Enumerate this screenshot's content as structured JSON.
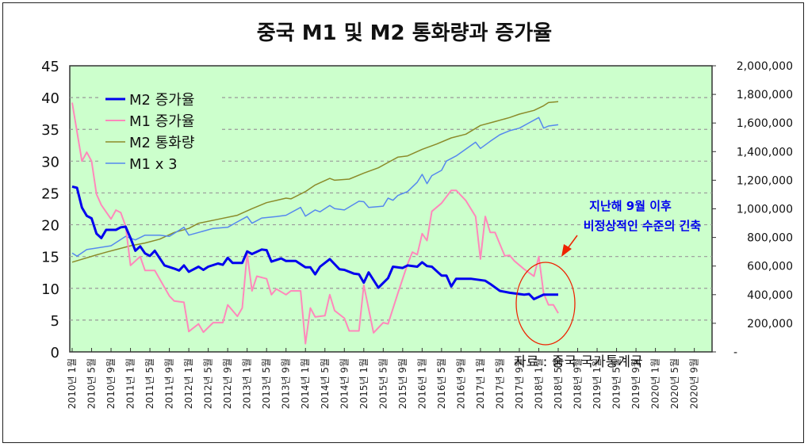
{
  "chart_data": {
    "type": "line",
    "title": "중국 M1 및 M2 통화량과 증가율",
    "xlabel": "",
    "ylabel_left": "",
    "ylabel_right": "",
    "ylim_left": [
      0,
      45
    ],
    "ylim_right": [
      0,
      2000000
    ],
    "left_ticks": [
      "0",
      "5",
      "10",
      "15",
      "20",
      "25",
      "30",
      "35",
      "40",
      "45"
    ],
    "right_ticks": [
      "-",
      "200,000",
      "400,000",
      "600,000",
      "800,000",
      "1,000,000",
      "1,200,000",
      "1,400,000",
      "1,600,000",
      "1,800,000",
      "2,000,000"
    ],
    "x_start": "2010-01",
    "x_months": 129,
    "x_tick_labels": [
      "2010년 1월",
      "2010년 5월",
      "2010년 9월",
      "2011년 1월",
      "2011년 5월",
      "2011년 9월",
      "2012년 1월",
      "2012년 5월",
      "2012년 9월",
      "2013년 1월",
      "2013년 5월",
      "2013년 9월",
      "2014년 1월",
      "2014년 5월",
      "2014년 9월",
      "2015년 1월",
      "2015년 5월",
      "2015년 9월",
      "2016년 1월",
      "2016년 5월",
      "2016년 9월",
      "2017년 1월",
      "2017년 5월",
      "2017년 9월",
      "2018년 1월",
      "2018년 5월",
      "2018년 9월",
      "2019년 1월",
      "2019년 5월",
      "2019년 9월",
      "2020년 1월",
      "2020년 5월",
      "2020년 9월"
    ],
    "grid": true,
    "legend_placement": "top-left",
    "series": [
      {
        "name": "M2 증가율",
        "axis": "left",
        "color": "#0000ee",
        "width": 3,
        "points": [
          [
            0,
            26.0
          ],
          [
            1,
            25.8
          ],
          [
            2,
            22.7
          ],
          [
            3,
            21.4
          ],
          [
            4,
            21.0
          ],
          [
            5,
            18.6
          ],
          [
            6,
            17.9
          ],
          [
            7,
            19.2
          ],
          [
            9,
            19.2
          ],
          [
            10,
            19.6
          ],
          [
            11,
            19.7
          ],
          [
            12,
            17.9
          ],
          [
            13,
            15.9
          ],
          [
            14,
            16.6
          ],
          [
            15,
            15.5
          ],
          [
            16,
            15.1
          ],
          [
            17,
            15.9
          ],
          [
            19,
            13.6
          ],
          [
            21,
            13.1
          ],
          [
            22,
            12.8
          ],
          [
            23,
            13.6
          ],
          [
            24,
            12.6
          ],
          [
            26,
            13.4
          ],
          [
            27,
            12.9
          ],
          [
            28,
            13.4
          ],
          [
            30,
            13.9
          ],
          [
            31,
            13.7
          ],
          [
            32,
            14.8
          ],
          [
            33,
            14.0
          ],
          [
            35,
            14.0
          ],
          [
            36,
            15.8
          ],
          [
            37,
            15.4
          ],
          [
            39,
            16.1
          ],
          [
            40,
            16.0
          ],
          [
            41,
            14.2
          ],
          [
            43,
            14.7
          ],
          [
            44,
            14.3
          ],
          [
            46,
            14.3
          ],
          [
            48,
            13.3
          ],
          [
            49,
            13.3
          ],
          [
            50,
            12.2
          ],
          [
            51,
            13.4
          ],
          [
            53,
            14.6
          ],
          [
            55,
            13.0
          ],
          [
            56,
            12.9
          ],
          [
            58,
            12.3
          ],
          [
            59,
            12.2
          ],
          [
            60,
            10.9
          ],
          [
            61,
            12.5
          ],
          [
            63,
            10.1
          ],
          [
            65,
            11.6
          ],
          [
            66,
            13.4
          ],
          [
            68,
            13.2
          ],
          [
            69,
            13.6
          ],
          [
            71,
            13.4
          ],
          [
            72,
            14.1
          ],
          [
            73,
            13.5
          ],
          [
            74,
            13.4
          ],
          [
            76,
            12.0
          ],
          [
            77,
            12.0
          ],
          [
            78,
            10.3
          ],
          [
            79,
            11.5
          ],
          [
            82,
            11.5
          ],
          [
            85,
            11.2
          ],
          [
            86,
            10.7
          ],
          [
            88,
            9.6
          ],
          [
            90,
            9.3
          ],
          [
            92,
            9.1
          ],
          [
            93,
            9.0
          ],
          [
            94,
            9.1
          ],
          [
            95,
            8.3
          ],
          [
            97,
            9.0
          ],
          [
            100,
            9.0
          ]
        ]
      },
      {
        "name": "M1 증가율",
        "axis": "left",
        "color": "#ff88bb",
        "width": 2,
        "points": [
          [
            0,
            39.2
          ],
          [
            2,
            30.0
          ],
          [
            3,
            31.4
          ],
          [
            4,
            30.0
          ],
          [
            5,
            24.8
          ],
          [
            6,
            23.1
          ],
          [
            8,
            20.9
          ],
          [
            9,
            22.3
          ],
          [
            10,
            21.9
          ],
          [
            11,
            19.8
          ],
          [
            12,
            13.6
          ],
          [
            14,
            15.0
          ],
          [
            15,
            12.8
          ],
          [
            17,
            12.8
          ],
          [
            20,
            8.8
          ],
          [
            21,
            8.0
          ],
          [
            23,
            7.8
          ],
          [
            24,
            3.2
          ],
          [
            26,
            4.4
          ],
          [
            27,
            3.1
          ],
          [
            29,
            4.6
          ],
          [
            31,
            4.6
          ],
          [
            32,
            7.4
          ],
          [
            34,
            5.6
          ],
          [
            35,
            6.9
          ],
          [
            36,
            15.5
          ],
          [
            37,
            9.6
          ],
          [
            38,
            11.9
          ],
          [
            40,
            11.5
          ],
          [
            41,
            9.0
          ],
          [
            42,
            9.9
          ],
          [
            44,
            9.0
          ],
          [
            45,
            9.6
          ],
          [
            47,
            9.6
          ],
          [
            48,
            1.3
          ],
          [
            49,
            6.9
          ],
          [
            50,
            5.5
          ],
          [
            52,
            5.7
          ],
          [
            53,
            9.0
          ],
          [
            54,
            6.5
          ],
          [
            56,
            5.3
          ],
          [
            57,
            3.3
          ],
          [
            59,
            3.3
          ],
          [
            60,
            10.5
          ],
          [
            62,
            3.0
          ],
          [
            63,
            3.8
          ],
          [
            64,
            4.6
          ],
          [
            65,
            4.4
          ],
          [
            67,
            9.2
          ],
          [
            69,
            13.8
          ],
          [
            70,
            15.7
          ],
          [
            71,
            15.3
          ],
          [
            72,
            18.6
          ],
          [
            73,
            17.5
          ],
          [
            74,
            22.1
          ],
          [
            76,
            23.4
          ],
          [
            78,
            25.4
          ],
          [
            79,
            25.4
          ],
          [
            81,
            23.8
          ],
          [
            83,
            21.3
          ],
          [
            84,
            14.6
          ],
          [
            85,
            21.3
          ],
          [
            86,
            18.8
          ],
          [
            87,
            18.8
          ],
          [
            89,
            15.1
          ],
          [
            90,
            15.2
          ],
          [
            91,
            14.3
          ],
          [
            93,
            13.0
          ],
          [
            95,
            11.9
          ],
          [
            96,
            15.0
          ],
          [
            97,
            9.2
          ],
          [
            98,
            7.4
          ],
          [
            99,
            7.4
          ],
          [
            100,
            6.1
          ]
        ]
      },
      {
        "name": "M2 통화량",
        "axis": "right",
        "color": "#8b8b2a",
        "width": 1.5,
        "points": [
          [
            0,
            627000
          ],
          [
            5,
            678000
          ],
          [
            7,
            697000
          ],
          [
            12,
            742000
          ],
          [
            15,
            761000
          ],
          [
            18,
            788000
          ],
          [
            21,
            835000
          ],
          [
            24,
            863000
          ],
          [
            26,
            899000
          ],
          [
            30,
            927000
          ],
          [
            34,
            955000
          ],
          [
            37,
            1001000
          ],
          [
            40,
            1043000
          ],
          [
            44,
            1075000
          ],
          [
            45,
            1070000
          ],
          [
            48,
            1121000
          ],
          [
            50,
            1167000
          ],
          [
            53,
            1213000
          ],
          [
            54,
            1200000
          ],
          [
            57,
            1208000
          ],
          [
            60,
            1250000
          ],
          [
            63,
            1287000
          ],
          [
            65,
            1324000
          ],
          [
            67,
            1361000
          ],
          [
            69,
            1370000
          ],
          [
            72,
            1416000
          ],
          [
            75,
            1453000
          ],
          [
            78,
            1496000
          ],
          [
            81,
            1522000
          ],
          [
            84,
            1583000
          ],
          [
            87,
            1610000
          ],
          [
            90,
            1638000
          ],
          [
            92,
            1662000
          ],
          [
            95,
            1688000
          ],
          [
            97,
            1721000
          ],
          [
            98,
            1743000
          ],
          [
            100,
            1749000
          ]
        ]
      },
      {
        "name": "M1 x 3",
        "axis": "right",
        "color": "#5588ee",
        "width": 1.5,
        "points": [
          [
            0,
            691000
          ],
          [
            1,
            669000
          ],
          [
            3,
            715000
          ],
          [
            8,
            742000
          ],
          [
            11,
            807000
          ],
          [
            13,
            783000
          ],
          [
            15,
            816000
          ],
          [
            18,
            816000
          ],
          [
            20,
            807000
          ],
          [
            23,
            871000
          ],
          [
            24,
            816000
          ],
          [
            26,
            835000
          ],
          [
            29,
            863000
          ],
          [
            32,
            871000
          ],
          [
            34,
            909000
          ],
          [
            36,
            946000
          ],
          [
            37,
            899000
          ],
          [
            39,
            936000
          ],
          [
            42,
            946000
          ],
          [
            44,
            955000
          ],
          [
            47,
            1010000
          ],
          [
            48,
            949000
          ],
          [
            50,
            992000
          ],
          [
            51,
            979000
          ],
          [
            53,
            1023000
          ],
          [
            54,
            1001000
          ],
          [
            56,
            992000
          ],
          [
            59,
            1053000
          ],
          [
            60,
            1050000
          ],
          [
            61,
            1010000
          ],
          [
            64,
            1019000
          ],
          [
            65,
            1075000
          ],
          [
            66,
            1060000
          ],
          [
            67,
            1093000
          ],
          [
            69,
            1121000
          ],
          [
            71,
            1186000
          ],
          [
            72,
            1241000
          ],
          [
            73,
            1176000
          ],
          [
            74,
            1232000
          ],
          [
            76,
            1269000
          ],
          [
            77,
            1334000
          ],
          [
            79,
            1370000
          ],
          [
            83,
            1466000
          ],
          [
            84,
            1422000
          ],
          [
            86,
            1472000
          ],
          [
            88,
            1518000
          ],
          [
            90,
            1546000
          ],
          [
            92,
            1564000
          ],
          [
            94,
            1601000
          ],
          [
            96,
            1638000
          ],
          [
            97,
            1564000
          ],
          [
            98,
            1579000
          ],
          [
            100,
            1588000
          ]
        ]
      }
    ],
    "annotations": {
      "callout_line1": "지난해 9월 이후",
      "callout_line2": "비정상적인 수준의 긴축",
      "source": "자료 : 중국 국가통계국",
      "callout_color": "#0000ee",
      "circle_color": "#ee2200"
    },
    "background_color": "#ccffcc"
  }
}
